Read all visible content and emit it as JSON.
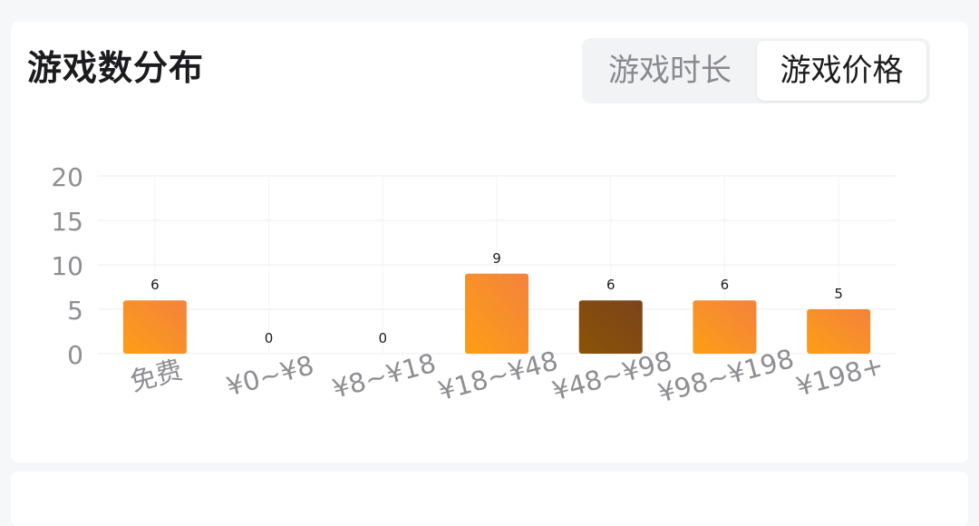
{
  "card": {
    "title": "游戏数分布",
    "tabs": [
      {
        "label": "游戏时长",
        "selected": false
      },
      {
        "label": "游戏价格",
        "selected": true
      }
    ]
  },
  "colors": {
    "bar_gradient_start": "#fd9e14",
    "bar_gradient_end": "#f4823d",
    "bar_active_start": "#8a5306",
    "bar_active_end": "#7d431b",
    "axis_label": "#8e8e93",
    "grid": "#eeeeee"
  },
  "chart_data": {
    "type": "bar",
    "categories": [
      "免费",
      "¥0~¥8",
      "¥8~¥18",
      "¥18~¥48",
      "¥48~¥98",
      "¥98~¥198",
      "¥198+"
    ],
    "values": [
      6,
      0,
      0,
      9,
      6,
      6,
      5
    ],
    "yticks": [
      "0",
      "5",
      "10",
      "15",
      "20"
    ],
    "ylim": [
      0,
      20
    ],
    "highlighted_index": 4,
    "grid": true,
    "title": "",
    "xlabel": "",
    "ylabel": ""
  }
}
